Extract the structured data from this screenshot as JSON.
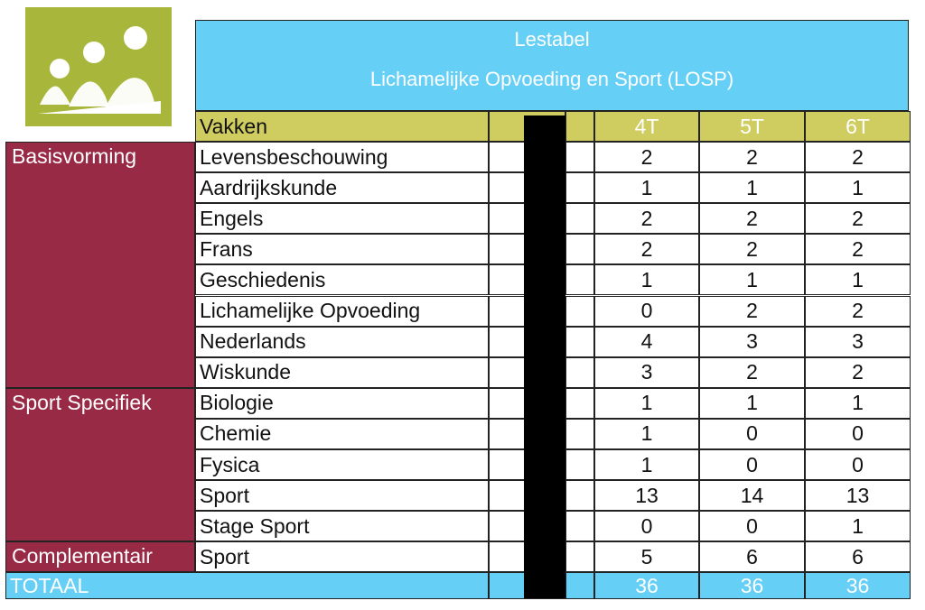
{
  "title": {
    "line1": "Lestabel",
    "line2": "Lichamelijke Opvoeding en Sport (LOSP)"
  },
  "columns": {
    "subject_header": "Vakken",
    "years": [
      "4T",
      "5T",
      "6T"
    ]
  },
  "groups": [
    {
      "label": "Basisvorming",
      "rows": [
        {
          "subject": "Levensbeschouwing",
          "values": [
            "2",
            "2",
            "2"
          ]
        },
        {
          "subject": "Aardrijkskunde",
          "values": [
            "1",
            "1",
            "1"
          ]
        },
        {
          "subject": "Engels",
          "values": [
            "2",
            "2",
            "2"
          ]
        },
        {
          "subject": "Frans",
          "values": [
            "2",
            "2",
            "2"
          ]
        },
        {
          "subject": "Geschiedenis",
          "values": [
            "1",
            "1",
            "1"
          ]
        },
        {
          "subject": "Lichamelijke Opvoeding",
          "values": [
            "0",
            "2",
            "2"
          ]
        },
        {
          "subject": "Nederlands",
          "values": [
            "4",
            "3",
            "3"
          ]
        },
        {
          "subject": "Wiskunde",
          "values": [
            "3",
            "2",
            "2"
          ]
        }
      ]
    },
    {
      "label": "Sport Specifiek",
      "rows": [
        {
          "subject": "Biologie",
          "values": [
            "1",
            "1",
            "1"
          ]
        },
        {
          "subject": "Chemie",
          "values": [
            "1",
            "0",
            "0"
          ]
        },
        {
          "subject": "Fysica",
          "values": [
            "1",
            "0",
            "0"
          ]
        },
        {
          "subject": "Sport",
          "values": [
            "13",
            "14",
            "13"
          ]
        },
        {
          "subject": "Stage Sport",
          "values": [
            "0",
            "0",
            "1"
          ]
        }
      ]
    },
    {
      "label": "Complementair",
      "rows": [
        {
          "subject": "Sport",
          "values": [
            "5",
            "6",
            "6"
          ]
        }
      ]
    }
  ],
  "total": {
    "label": "TOTAAL",
    "values": [
      "36",
      "36",
      "36"
    ]
  },
  "colors": {
    "header_bg": "#cfcc60",
    "title_bg": "#66cff6",
    "category_bg": "#992a45",
    "logo_bg": "#a8b73c"
  }
}
